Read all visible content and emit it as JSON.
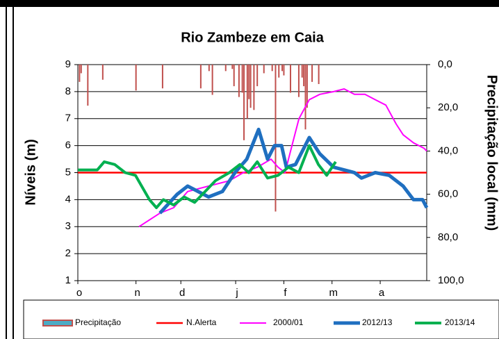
{
  "chart_data": {
    "type": "line",
    "title": "Rio  Zambeze em Caia",
    "y_label": "Níveis (m)",
    "y2_label": "Precipitação local (mm)",
    "xlim": [
      0,
      210
    ],
    "xticks": [
      {
        "value": 0,
        "label": "o"
      },
      {
        "value": 35,
        "label": "n"
      },
      {
        "value": 62,
        "label": "d"
      },
      {
        "value": 95,
        "label": "j"
      },
      {
        "value": 124,
        "label": "f"
      },
      {
        "value": 153,
        "label": "m"
      },
      {
        "value": 182,
        "label": "a"
      }
    ],
    "ylim": [
      1,
      9
    ],
    "yticks": [
      1,
      2,
      3,
      4,
      5,
      6,
      7,
      8,
      9
    ],
    "y2lim": [
      0,
      100
    ],
    "y2_inverted": true,
    "y2ticks": [
      {
        "value": 0,
        "label": "0,0"
      },
      {
        "value": 20,
        "label": "20,0"
      },
      {
        "value": 40,
        "label": "40,0"
      },
      {
        "value": 60,
        "label": "60,0"
      },
      {
        "value": 80,
        "label": "80,0"
      },
      {
        "value": 100,
        "label": "100,0"
      }
    ],
    "grid": true,
    "legend": "bottom",
    "series": [
      {
        "name": "Precipitação",
        "type": "bar",
        "axis": "y2",
        "color": "#c0504d",
        "x": [
          1,
          2,
          6,
          15,
          35,
          51,
          74,
          79,
          81,
          89,
          93,
          94,
          97,
          99,
          100,
          102,
          103,
          104,
          106,
          108,
          112,
          117,
          119,
          121,
          123,
          124,
          128,
          133,
          135,
          136,
          137,
          138,
          141,
          145
        ],
        "values": [
          8,
          4,
          19,
          7,
          12,
          11,
          11,
          3,
          14,
          3,
          2,
          10,
          15,
          13,
          35,
          25,
          16,
          20,
          21,
          10,
          4,
          3,
          68,
          6,
          3,
          5,
          13,
          15,
          6,
          10,
          30,
          20,
          8,
          9
        ]
      },
      {
        "name": "N.Alerta",
        "type": "line",
        "color": "#ff0000",
        "x": [
          0,
          210
        ],
        "values": [
          5,
          5
        ]
      },
      {
        "name": "2000/01",
        "type": "line",
        "color": "#ff00ff",
        "x": [
          36.8,
          49.4,
          57.7,
          66.1,
          78.7,
          91.2,
          99.6,
          108,
          116.3,
          120.5,
          124.7,
          128.9,
          133.1,
          139.3,
          145.6,
          154,
          160.3,
          166.5,
          172.8,
          179,
          185.4,
          191.6,
          195.8,
          202.1,
          208.4,
          210
        ],
        "values": [
          3.0,
          3.5,
          3.7,
          4.3,
          4.5,
          4.7,
          5.0,
          5.2,
          5.5,
          5.2,
          5.0,
          6.0,
          7.0,
          7.7,
          7.9,
          8.0,
          8.1,
          7.9,
          7.9,
          7.7,
          7.5,
          6.8,
          6.4,
          6.1,
          5.9,
          5.8
        ]
      },
      {
        "name": "2012/13",
        "type": "line",
        "color": "#1f6fc0",
        "x": [
          49.4,
          59.8,
          66.1,
          78.7,
          87,
          94.6,
          101.7,
          108.8,
          114.2,
          118.4,
          122.6,
          125.5,
          131,
          139.3,
          145.6,
          154,
          166.5,
          170.7,
          179,
          187.4,
          195.8,
          202,
          207.5,
          210
        ],
        "values": [
          3.5,
          4.2,
          4.5,
          4.1,
          4.3,
          5.0,
          5.5,
          6.6,
          5.5,
          6.0,
          6.0,
          5.2,
          5.3,
          6.3,
          5.7,
          5.2,
          5.0,
          4.8,
          5.0,
          4.9,
          4.5,
          4.0,
          4.0,
          3.7
        ]
      },
      {
        "name": "2013/14",
        "type": "line",
        "color": "#00b050",
        "x": [
          0,
          11.7,
          15.9,
          22.2,
          28.5,
          34.7,
          43.1,
          47.3,
          51.5,
          57.7,
          64,
          70.3,
          76.6,
          82.8,
          91.2,
          97.5,
          102.9,
          108,
          114.2,
          120.5,
          126.8,
          133,
          139.3,
          144.8,
          149.8,
          155.2
        ],
        "values": [
          5.1,
          5.1,
          5.4,
          5.3,
          5.0,
          4.9,
          4.0,
          3.7,
          4.0,
          3.8,
          4.1,
          3.9,
          4.3,
          4.7,
          5.0,
          5.3,
          5.0,
          5.4,
          4.8,
          4.9,
          5.2,
          5.0,
          6.0,
          5.3,
          4.9,
          5.4
        ]
      }
    ]
  }
}
